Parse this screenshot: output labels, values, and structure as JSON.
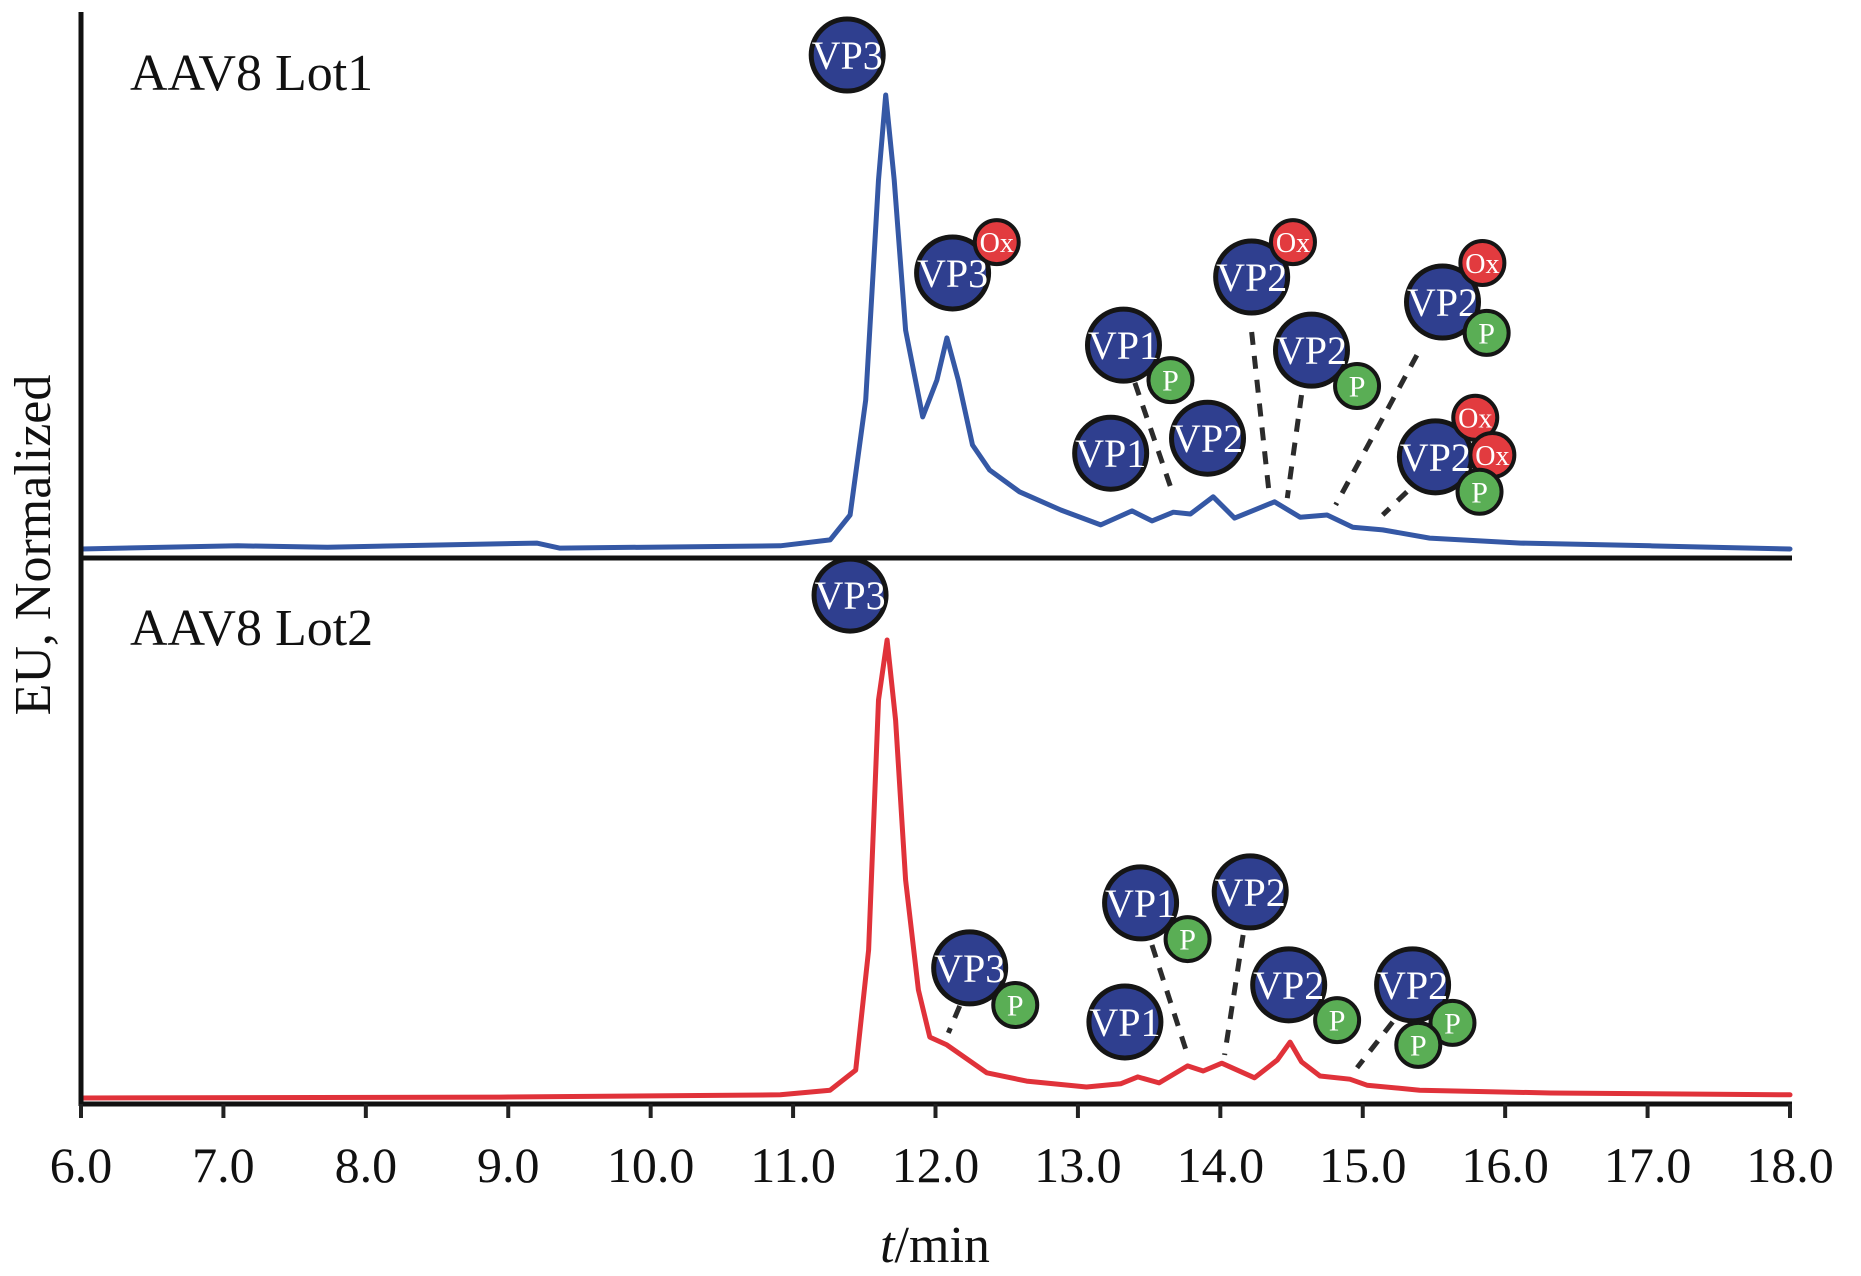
{
  "chart_data": {
    "type": "line",
    "title": "",
    "xlabel": "t/min",
    "xlabel_italic_part": "t",
    "xlabel_rest": "/min",
    "ylabel": "EU, Normalized",
    "xlim": [
      6.0,
      18.0
    ],
    "ylim": [
      0,
      100
    ],
    "x_ticks": [
      "6.0",
      "7.0",
      "8.0",
      "9.0",
      "10.0",
      "11.0",
      "12.0",
      "13.0",
      "14.0",
      "15.0",
      "16.0",
      "17.0",
      "18.0"
    ],
    "grid": false,
    "legend": "none",
    "colors": {
      "lot1": "#3558a5",
      "lot2": "#e0323a",
      "vp_circle": "#2f3f8f",
      "ox_circle": "#e23b3f",
      "p_circle": "#5aae55",
      "outline": "#151515",
      "dash": "#2b2b2b"
    },
    "panels": [
      {
        "name": "AAV8 Lot1",
        "series_key": "lot1",
        "series": {
          "name": "AAV8 Lot1",
          "x": [
            6.0,
            7.1,
            7.73,
            9.2,
            9.36,
            10.91,
            11.26,
            11.4,
            11.51,
            11.6,
            11.65,
            11.71,
            11.79,
            11.91,
            12.01,
            12.08,
            12.16,
            12.26,
            12.38,
            12.59,
            12.88,
            13.16,
            13.38,
            13.52,
            13.67,
            13.79,
            13.95,
            14.1,
            14.38,
            14.56,
            14.75,
            14.93,
            15.14,
            15.47,
            16.11,
            17.02,
            18.0
          ],
          "y": [
            0,
            0.7,
            0.4,
            1.3,
            0.2,
            0.7,
            2.0,
            7.5,
            32.8,
            81.3,
            100,
            81.3,
            48.2,
            29.1,
            37.2,
            46.5,
            37.2,
            22.9,
            17.4,
            12.6,
            8.6,
            5.3,
            8.4,
            6.2,
            8.1,
            7.7,
            11.5,
            6.8,
            10.4,
            7.0,
            7.5,
            4.8,
            4.2,
            2.4,
            1.3,
            0.7,
            0
          ]
        },
        "annotations": [
          {
            "id": "lot1-vp3",
            "circles": [
              {
                "label": "VP3",
                "kind": "vp",
                "t": 11.38,
                "i": 108.8
              }
            ]
          },
          {
            "id": "lot1-vp3-ox",
            "circles": [
              {
                "label": "VP3",
                "kind": "vp",
                "t": 12.12,
                "i": 60.8
              },
              {
                "label": "Ox",
                "kind": "ox",
                "t": 12.43,
                "i": 67.6
              }
            ]
          },
          {
            "id": "lot1-vp1-p",
            "circles": [
              {
                "label": "VP1",
                "kind": "vp",
                "t": 13.32,
                "i": 44.9
              },
              {
                "label": "P",
                "kind": "p",
                "t": 13.65,
                "i": 37.2
              }
            ]
          },
          {
            "id": "lot1-vp1",
            "circles": [
              {
                "label": "VP1",
                "kind": "vp",
                "t": 13.23,
                "i": 21.1
              }
            ]
          },
          {
            "id": "lot1-vp2",
            "circles": [
              {
                "label": "VP2",
                "kind": "vp",
                "t": 13.91,
                "i": 24.4
              }
            ]
          },
          {
            "id": "lot1-vp2-ox",
            "circles": [
              {
                "label": "VP2",
                "kind": "vp",
                "t": 14.22,
                "i": 59.9
              },
              {
                "label": "Ox",
                "kind": "ox",
                "t": 14.51,
                "i": 67.6
              }
            ]
          },
          {
            "id": "lot1-vp2-p",
            "circles": [
              {
                "label": "VP2",
                "kind": "vp",
                "t": 14.64,
                "i": 43.8
              },
              {
                "label": "P",
                "kind": "p",
                "t": 14.96,
                "i": 35.9
              }
            ]
          },
          {
            "id": "lot1-vp2-ox-p",
            "circles": [
              {
                "label": "VP2",
                "kind": "vp",
                "t": 15.56,
                "i": 54.4
              },
              {
                "label": "Ox",
                "kind": "ox",
                "t": 15.84,
                "i": 63.0
              },
              {
                "label": "P",
                "kind": "p",
                "t": 15.87,
                "i": 47.6
              }
            ]
          },
          {
            "id": "lot1-vp2-ox-ox-p",
            "circles": [
              {
                "label": "VP2",
                "kind": "vp",
                "t": 15.51,
                "i": 20.3
              },
              {
                "label": "Ox",
                "kind": "ox",
                "t": 15.79,
                "i": 28.9
              },
              {
                "label": "Ox",
                "kind": "ox",
                "t": 15.91,
                "i": 20.7
              },
              {
                "label": "P",
                "kind": "p",
                "t": 15.82,
                "i": 12.6
              }
            ]
          }
        ],
        "leaders": [
          {
            "from": [
              13.4,
              36.6
            ],
            "to": [
              13.67,
              11.9
            ]
          },
          {
            "from": [
              14.22,
              47.8
            ],
            "to": [
              14.34,
              13.0
            ]
          },
          {
            "from": [
              14.57,
              33.9
            ],
            "to": [
              14.47,
              11.2
            ]
          },
          {
            "from": [
              15.38,
              42.7
            ],
            "to": [
              14.81,
              9.7
            ]
          },
          {
            "from": [
              15.31,
              12.6
            ],
            "to": [
              15.14,
              7.5
            ]
          }
        ]
      },
      {
        "name": "AAV8 Lot2",
        "series_key": "lot2",
        "series": {
          "name": "AAV8 Lot2",
          "x": [
            6.0,
            8.94,
            10.91,
            11.26,
            11.44,
            11.53,
            11.6,
            11.66,
            11.72,
            11.79,
            11.88,
            11.96,
            12.08,
            12.36,
            12.64,
            13.06,
            13.3,
            13.42,
            13.57,
            13.77,
            13.88,
            14.01,
            14.24,
            14.4,
            14.49,
            14.57,
            14.7,
            14.91,
            15.03,
            15.4,
            16.32,
            18.0
          ],
          "y": [
            0,
            0.2,
            0.7,
            1.7,
            6.1,
            32.3,
            86.9,
            100,
            82.5,
            47.6,
            23.6,
            13.3,
            11.6,
            5.5,
            3.7,
            2.4,
            3.1,
            4.6,
            3.3,
            7.0,
            5.9,
            7.6,
            4.4,
            8.3,
            12.2,
            7.9,
            4.8,
            4.1,
            2.8,
            1.7,
            1.1,
            0.7
          ]
        },
        "annotations": [
          {
            "id": "lot2-vp3",
            "circles": [
              {
                "label": "VP3",
                "kind": "vp",
                "t": 11.4,
                "i": 109.8
              }
            ]
          },
          {
            "id": "lot2-vp3-p",
            "circles": [
              {
                "label": "VP3",
                "kind": "vp",
                "t": 12.24,
                "i": 28.4
              },
              {
                "label": "P",
                "kind": "p",
                "t": 12.56,
                "i": 20.3
              }
            ]
          },
          {
            "id": "lot2-vp1-p",
            "circles": [
              {
                "label": "VP1",
                "kind": "vp",
                "t": 13.44,
                "i": 42.6
              },
              {
                "label": "P",
                "kind": "p",
                "t": 13.77,
                "i": 34.7
              }
            ]
          },
          {
            "id": "lot2-vp1",
            "circles": [
              {
                "label": "VP1",
                "kind": "vp",
                "t": 13.33,
                "i": 16.6
              }
            ]
          },
          {
            "id": "lot2-vp2",
            "circles": [
              {
                "label": "VP2",
                "kind": "vp",
                "t": 14.21,
                "i": 45.0
              }
            ]
          },
          {
            "id": "lot2-vp2-p",
            "circles": [
              {
                "label": "VP2",
                "kind": "vp",
                "t": 14.48,
                "i": 24.7
              },
              {
                "label": "P",
                "kind": "p",
                "t": 14.82,
                "i": 17.0
              }
            ]
          },
          {
            "id": "lot2-vp2-p-p",
            "circles": [
              {
                "label": "VP2",
                "kind": "vp",
                "t": 15.35,
                "i": 24.7
              },
              {
                "label": "P",
                "kind": "p",
                "t": 15.63,
                "i": 16.4
              },
              {
                "label": "P",
                "kind": "p",
                "t": 15.39,
                "i": 11.6
              }
            ]
          }
        ],
        "leaders": [
          {
            "from": [
              12.17,
              20.1
            ],
            "to": [
              12.09,
              14.2
            ]
          },
          {
            "from": [
              13.52,
              33.4
            ],
            "to": [
              13.77,
              9.4
            ]
          },
          {
            "from": [
              14.16,
              35.6
            ],
            "to": [
              14.03,
              9.4
            ]
          },
          {
            "from": [
              15.21,
              16.6
            ],
            "to": [
              14.96,
              6.6
            ]
          }
        ]
      }
    ]
  }
}
